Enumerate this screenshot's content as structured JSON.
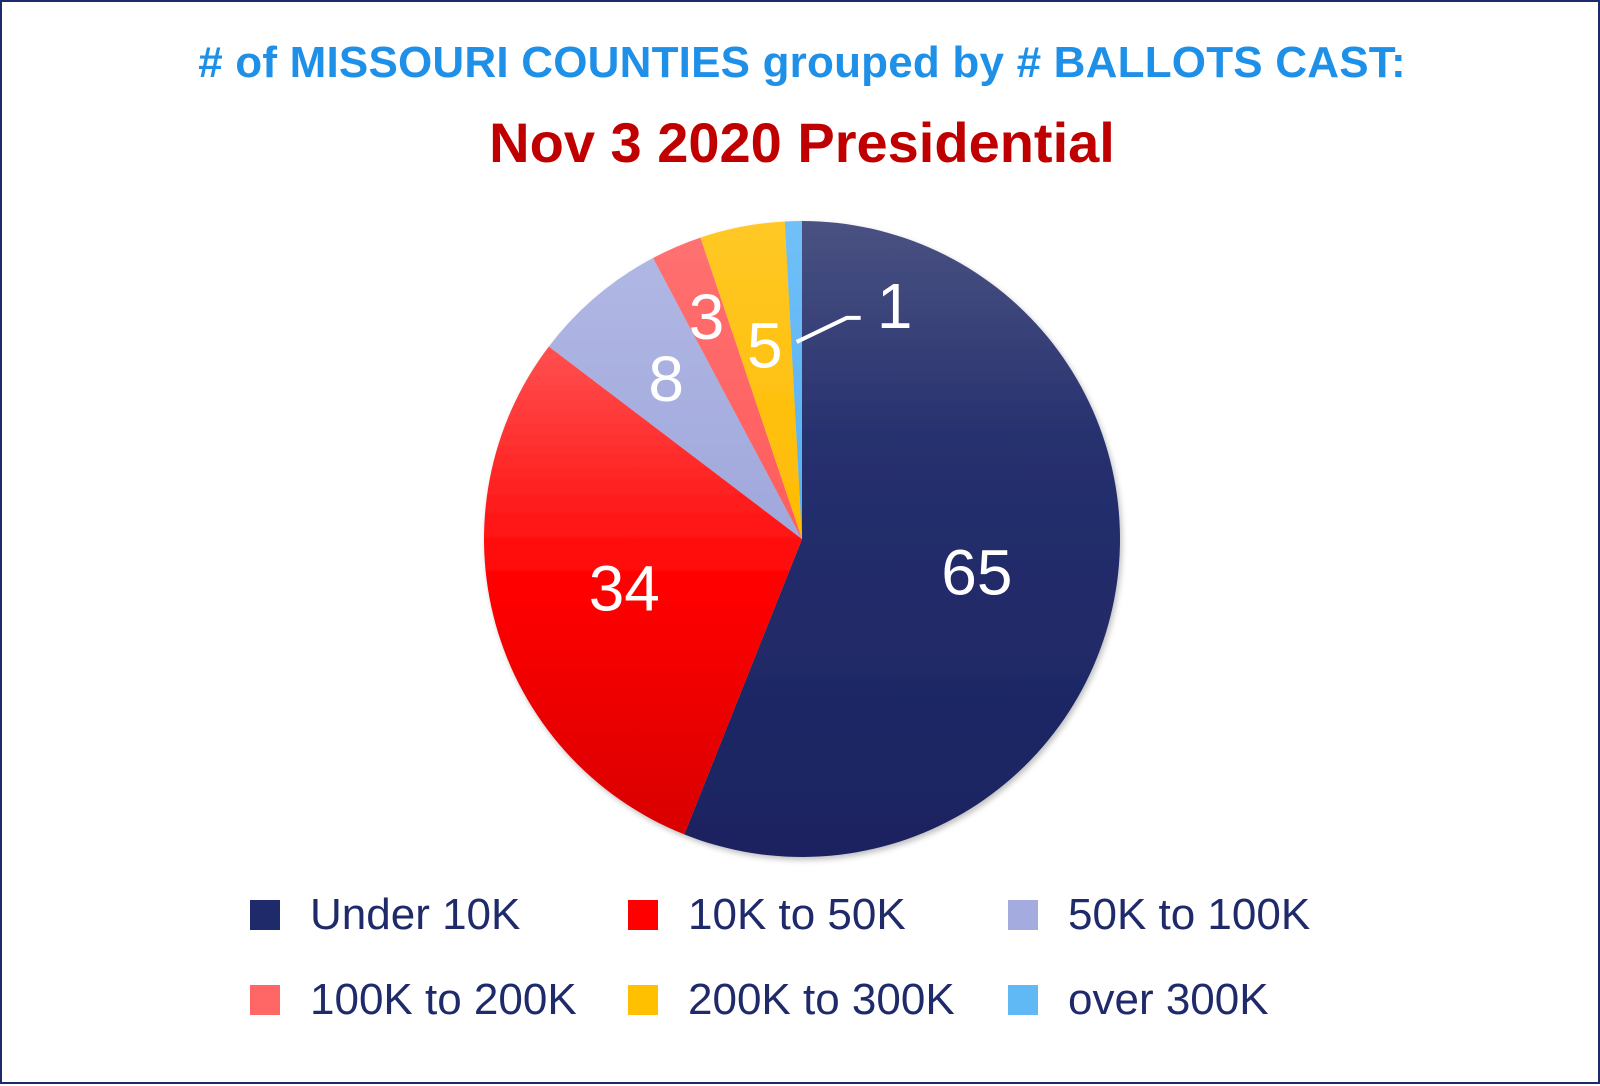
{
  "title": "# of MISSOURI COUNTIES grouped by # BALLOTS CAST:",
  "subtitle": "Nov 3 2020 Presidential",
  "chart_data": {
    "type": "pie",
    "title": "# of MISSOURI COUNTIES grouped by # BALLOTS CAST:",
    "subtitle": "Nov 3 2020 Presidential",
    "categories": [
      "Under 10K",
      "10K to 50K",
      "50K to 100K",
      "100K to 200K",
      "200K to 300K",
      "over 300K"
    ],
    "values": [
      65,
      34,
      8,
      3,
      5,
      1
    ],
    "data_labels": [
      "65",
      "34",
      "8",
      "3",
      "5",
      "1"
    ],
    "colors": [
      "#1f2a6b",
      "#ff0000",
      "#a4acdf",
      "#ff6666",
      "#ffc000",
      "#60b8f5"
    ],
    "legend_position": "bottom",
    "start_angle": "12 o'clock",
    "direction": "clockwise"
  },
  "legend": [
    {
      "label": "Under 10K",
      "color": "#1f2a6b"
    },
    {
      "label": "10K to 50K",
      "color": "#ff0000"
    },
    {
      "label": "50K to 100K",
      "color": "#a4acdf"
    },
    {
      "label": "100K to 200K",
      "color": "#ff6666"
    },
    {
      "label": "200K to 300K",
      "color": "#ffc000"
    },
    {
      "label": "over 300K",
      "color": "#60b8f5"
    }
  ]
}
